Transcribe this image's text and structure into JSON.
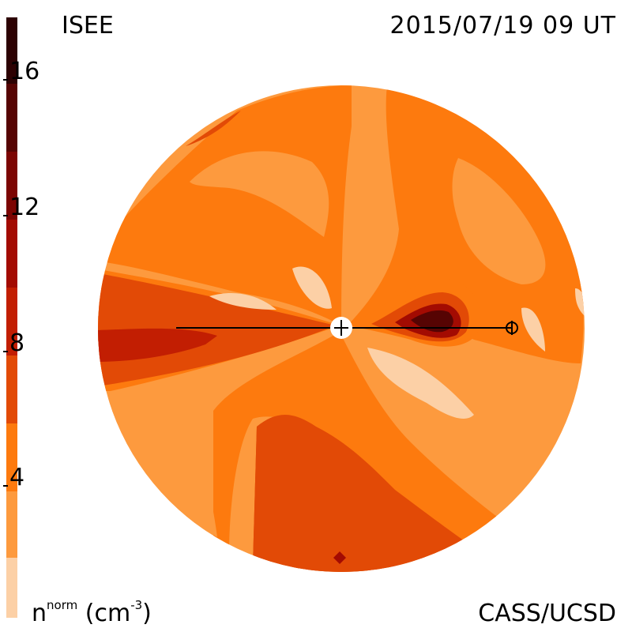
{
  "header": {
    "instrument": "ISEE",
    "timestamp": "2015/07/19 09 UT"
  },
  "footer": {
    "credit": "CASS/UCSD",
    "unit_label": "n",
    "unit_superscript": "norm",
    "unit_suffix": "(cm",
    "unit_exponent": "-3",
    "unit_close": ")"
  },
  "colorbar": {
    "ticks": [
      "16",
      "12",
      "8",
      "4"
    ],
    "levels": [
      {
        "range": "0-2",
        "color": "#fcd0a6"
      },
      {
        "range": "2-4",
        "color": "#fd9a3e"
      },
      {
        "range": "4-6",
        "color": "#fd7a0e"
      },
      {
        "range": "6-8",
        "color": "#e24a06"
      },
      {
        "range": "8-10",
        "color": "#c21e02"
      },
      {
        "range": "10-12",
        "color": "#a30b02"
      },
      {
        "range": "12-14",
        "color": "#7c0503"
      },
      {
        "range": "14-16",
        "color": "#560403"
      },
      {
        "range": "16-18",
        "color": "#2d0203"
      }
    ]
  },
  "markers": {
    "sun": "sun-center-marker",
    "earth": "earth-marker"
  }
}
